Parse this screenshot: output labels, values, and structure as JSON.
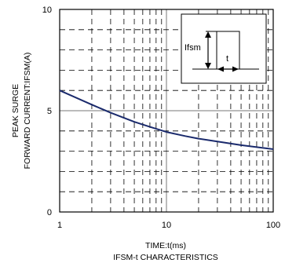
{
  "chart_data": {
    "type": "line",
    "title": "IFSM-t CHARACTERISTICS",
    "xlabel": "TIME:t(ms)",
    "ylabel_lines": [
      "PEAK SURGE",
      "FORWARD CURRENT:IFSM(A)"
    ],
    "x_scale": "log",
    "xlim": [
      1,
      100
    ],
    "ylim": [
      0,
      10
    ],
    "x_ticks": [
      1,
      10,
      100
    ],
    "x_tick_labels": [
      "1",
      "10",
      "100"
    ],
    "y_ticks": [
      0,
      5,
      10
    ],
    "y_tick_labels": [
      "0",
      "5",
      "10"
    ],
    "grid": true,
    "line_color": "#1a2a6c",
    "series": [
      {
        "x": [
          1,
          2,
          3,
          5,
          7,
          10,
          15,
          20,
          30,
          50,
          70,
          100
        ],
        "y": [
          6.0,
          5.3,
          4.9,
          4.45,
          4.2,
          3.95,
          3.75,
          3.62,
          3.48,
          3.3,
          3.2,
          3.1
        ]
      }
    ],
    "inset": {
      "label_ifsm": "Ifsm",
      "label_t": "t"
    }
  }
}
